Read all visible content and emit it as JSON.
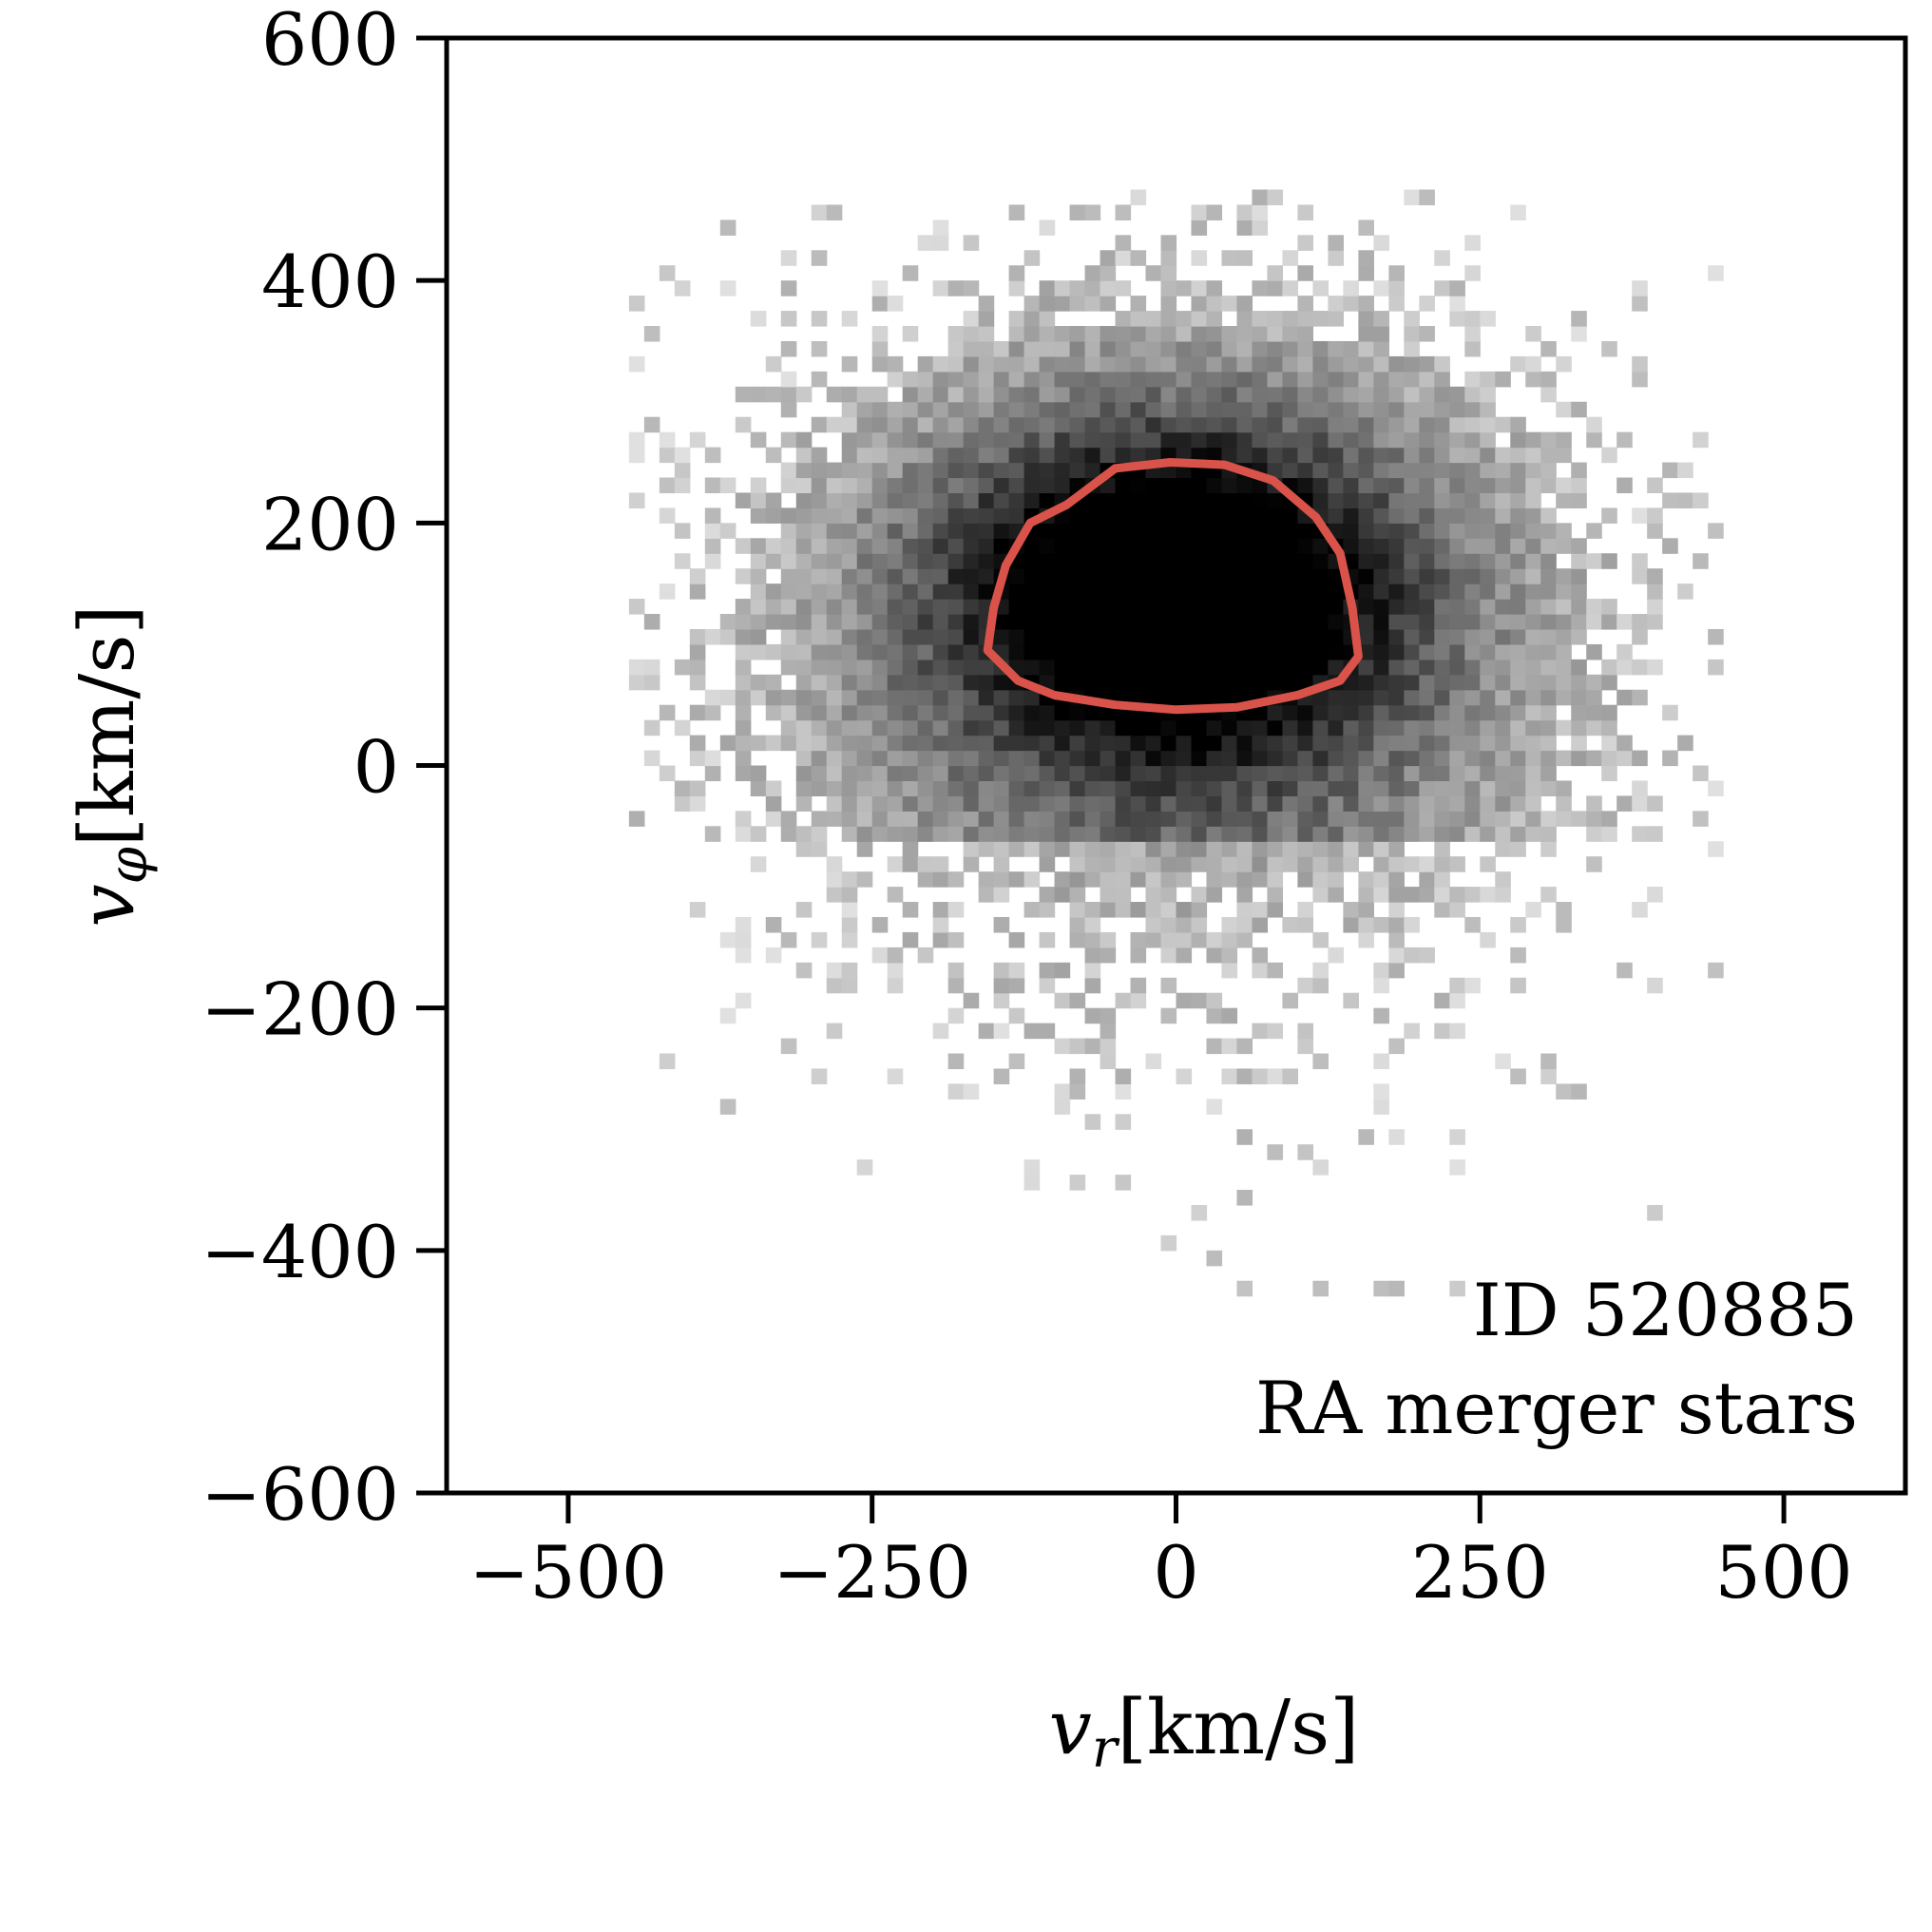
{
  "chart_data": {
    "type": "heatmap",
    "title": "",
    "xlabel": {
      "symbol": "v",
      "subscript": "r",
      "unit": "[km/s]"
    },
    "ylabel": {
      "symbol": "v",
      "subscript": "φ",
      "unit": "[km/s]"
    },
    "xlim": [
      -600,
      600
    ],
    "ylim": [
      -600,
      600
    ],
    "xticks": [
      -500,
      -250,
      0,
      250,
      500
    ],
    "xtick_labels": [
      "−500",
      "−250",
      "0",
      "250",
      "500"
    ],
    "yticks": [
      -600,
      -400,
      -200,
      0,
      200,
      400,
      600
    ],
    "ytick_labels": [
      "−600",
      "−400",
      "−200",
      "0",
      "200",
      "400",
      "600"
    ],
    "grid": false,
    "colormap": "greys",
    "density_model": {
      "core_center": [
        0,
        150
      ],
      "core_sigma": [
        135,
        95
      ],
      "halo_center": [
        0,
        60
      ],
      "halo_sigma": [
        190,
        170
      ]
    },
    "contour": {
      "color": "#d9534a",
      "points": [
        [
          -5,
          250
        ],
        [
          40,
          248
        ],
        [
          80,
          235
        ],
        [
          115,
          205
        ],
        [
          135,
          175
        ],
        [
          145,
          130
        ],
        [
          150,
          90
        ],
        [
          135,
          70
        ],
        [
          100,
          58
        ],
        [
          50,
          48
        ],
        [
          0,
          46
        ],
        [
          -50,
          50
        ],
        [
          -100,
          58
        ],
        [
          -130,
          70
        ],
        [
          -155,
          95
        ],
        [
          -150,
          130
        ],
        [
          -140,
          165
        ],
        [
          -120,
          200
        ],
        [
          -90,
          215
        ],
        [
          -50,
          245
        ]
      ]
    },
    "annotations": [
      "ID 520885",
      "RA merger stars"
    ],
    "annotation_position": "bottom-right"
  }
}
